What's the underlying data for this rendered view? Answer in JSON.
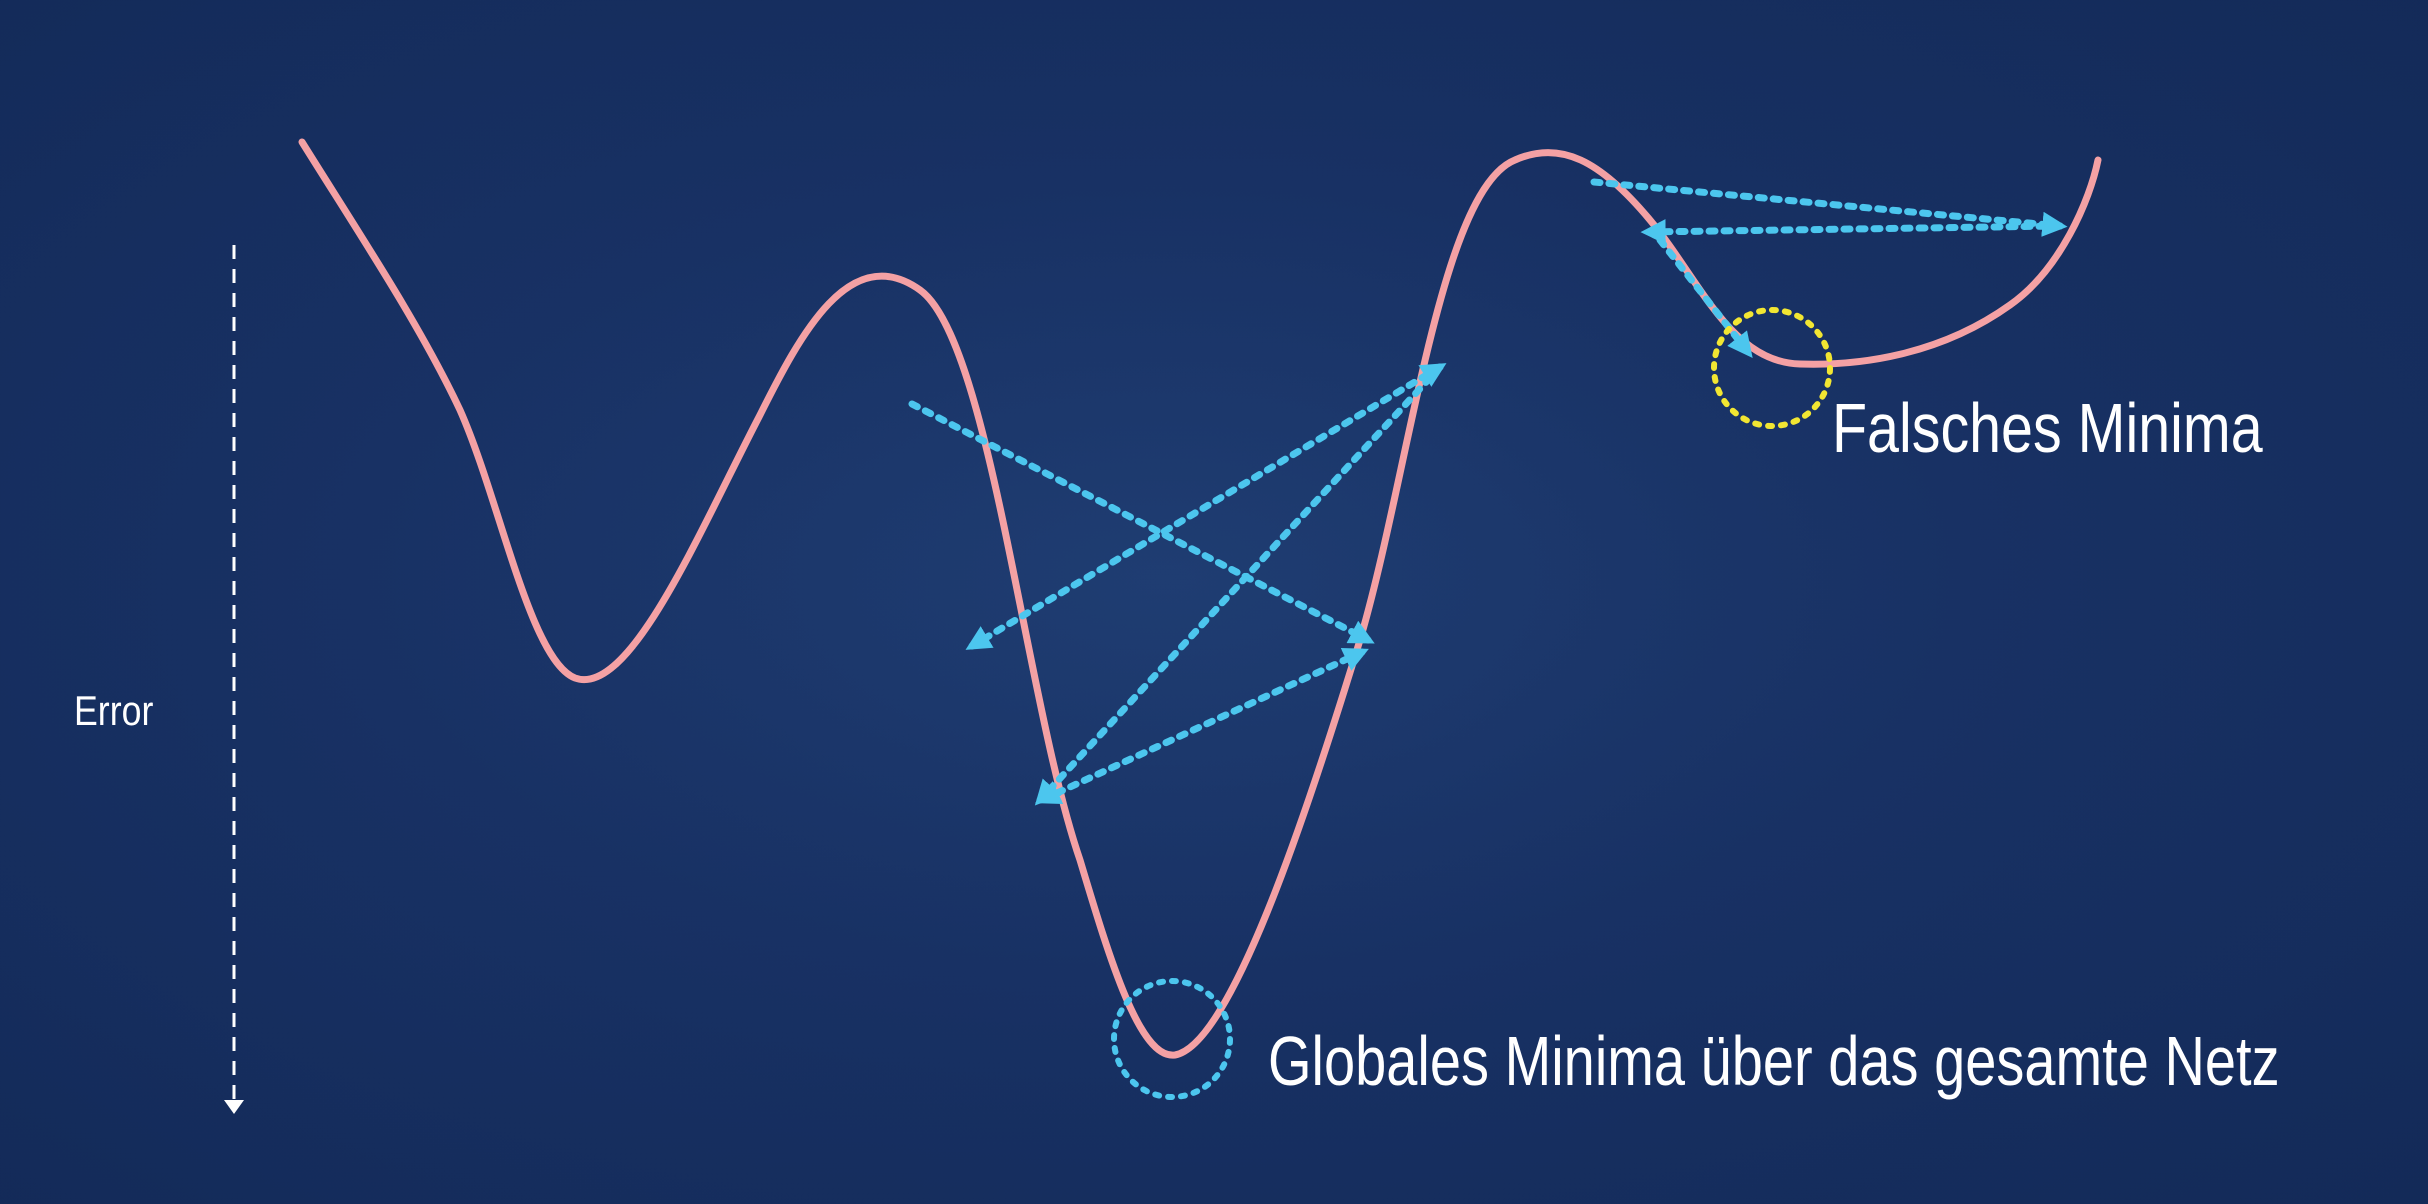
{
  "labels": {
    "error_axis": "Error",
    "false_minimum": "Falsches Minima",
    "global_minimum": "Globales Minima über das gesamte Netz"
  },
  "colors": {
    "background": "#183164",
    "curve": "#f4a1a4",
    "steps": "#4cc6ee",
    "false_minimum_marker": "#f2e632",
    "global_minimum_marker": "#4cc6ee",
    "axis": "#ffffff"
  },
  "icons": {
    "axis_arrow": "arrow-down-icon",
    "step_arrow": "arrowhead-icon"
  }
}
